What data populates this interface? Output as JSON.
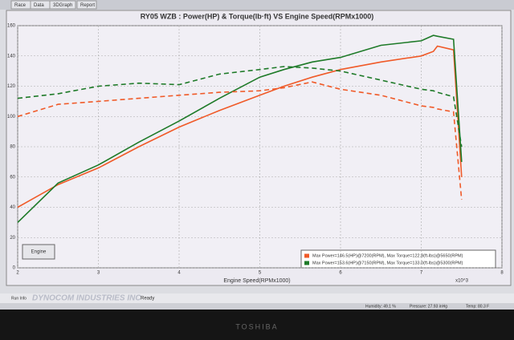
{
  "tabs": [
    "Race",
    "Data",
    "3DGraph",
    "Report"
  ],
  "chart_data": {
    "type": "line",
    "title": "RY05 WZB : Power(HP) & Torque(lb·ft) VS Engine Speed(RPMx1000)",
    "x_label": "Engine Speed(RPMx1000)",
    "x_multiplier": "x10^3",
    "x": [
      2.0,
      2.5,
      3.0,
      3.5,
      4.0,
      4.5,
      5.0,
      5.3,
      5.65,
      6.0,
      6.5,
      7.0,
      7.15,
      7.2,
      7.4,
      7.5
    ],
    "series": [
      {
        "color": "#f05a28",
        "dash": false,
        "values": [
          40,
          55,
          66,
          80,
          93,
          104,
          114,
          120,
          126,
          131,
          136,
          140,
          143,
          146.5,
          144,
          60
        ]
      },
      {
        "color": "#1e7a28",
        "dash": false,
        "values": [
          30,
          56,
          68,
          83,
          97,
          112,
          126,
          131,
          136,
          139,
          147,
          150,
          153.6,
          153,
          151,
          70
        ]
      },
      {
        "color": "#f05a28",
        "dash": true,
        "values": [
          100,
          108,
          110,
          112,
          114,
          116,
          117,
          119,
          122.8,
          118,
          114,
          107,
          106,
          105,
          103,
          45
        ]
      },
      {
        "color": "#1e7a28",
        "dash": true,
        "values": [
          112,
          115,
          120,
          122,
          121,
          128,
          131,
          133,
          132,
          130,
          124,
          118,
          117,
          116,
          113,
          80
        ]
      }
    ],
    "xlim": [
      2,
      8
    ],
    "xticks": [
      2,
      3,
      4,
      5,
      6,
      7,
      8
    ],
    "ylim": [
      0,
      160
    ],
    "yticks": [
      0,
      20,
      40,
      60,
      80,
      100,
      120,
      140,
      160
    ],
    "grid": true,
    "button": "Engine",
    "legend": [
      {
        "text": "Max Power=146.5(HP)@7200(RPM), Max Torque=122.8(ft-lbs)@5650(RPM)",
        "color": "#f05a28"
      },
      {
        "text": "Max Power=153.6(HP)@7150(RPM), Max Torque=133.0(ft-lbs)@5300(RPM)",
        "color": "#1e7a28"
      }
    ]
  },
  "status": {
    "tab": "Run Info",
    "brand": "DYNOCOM INDUSTRIES INC",
    "state": "Ready",
    "humidity": "Humidity: 49.1 %",
    "pressure": "Pressure: 27.93 inHg",
    "temp": "Temp: 80.3 F"
  },
  "monitor": "TOSHIBA"
}
